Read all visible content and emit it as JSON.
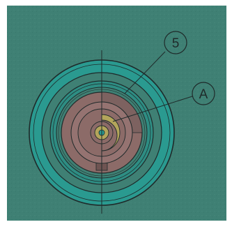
{
  "figure": {
    "callouts": [
      {
        "id": "5",
        "label": "5"
      },
      {
        "id": "A",
        "label": "A"
      }
    ],
    "colors": {
      "background": "#3f8074",
      "teal_ring": "#2a9a90",
      "mauve": "#8c6b68",
      "mauve_dark": "#6f5452",
      "olive": "#b3a55b",
      "line": "#1f2a2a",
      "frame": "#ffffff"
    }
  }
}
